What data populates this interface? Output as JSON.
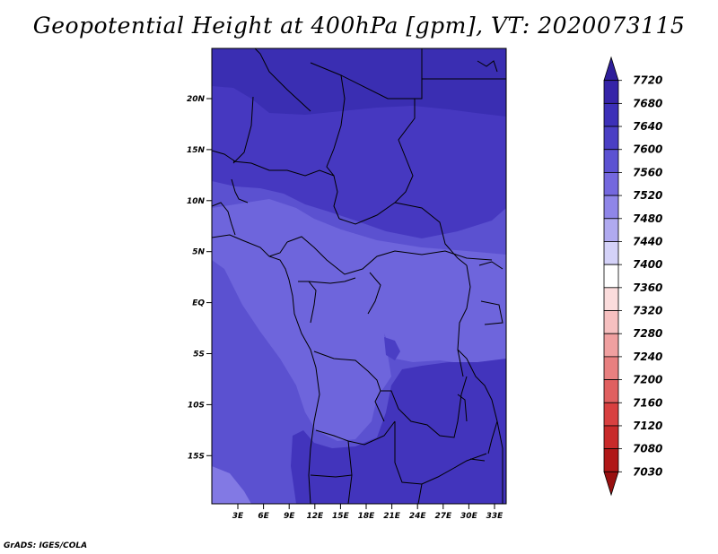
{
  "title": "Geopotential Height at 400hPa [gpm], VT: 2020073115",
  "credit": "GrADS: IGES/COLA",
  "map": {
    "lat_labels": [
      "20N",
      "15N",
      "10N",
      "5N",
      "EQ",
      "5S",
      "10S",
      "15S"
    ],
    "lon_labels": [
      "3E",
      "6E",
      "9E",
      "12E",
      "15E",
      "18E",
      "21E",
      "24E",
      "27E",
      "30E",
      "33E"
    ]
  },
  "colorbar": {
    "labels": [
      "7720",
      "7680",
      "7640",
      "7600",
      "7560",
      "7520",
      "7480",
      "7440",
      "7400",
      "7360",
      "7320",
      "7280",
      "7240",
      "7200",
      "7160",
      "7120",
      "7080",
      "7030"
    ],
    "colors": [
      "#2e1e9a",
      "#3524a8",
      "#3c30b8",
      "#4a3fc4",
      "#5c52d2",
      "#7468de",
      "#8f86e8",
      "#b0aaf0",
      "#d4d2f8",
      "#ffffff",
      "#fbdcdc",
      "#f6c0c0",
      "#f0a0a0",
      "#e88080",
      "#e06060",
      "#d84040",
      "#c82a2a",
      "#b01818",
      "#981010"
    ]
  }
}
